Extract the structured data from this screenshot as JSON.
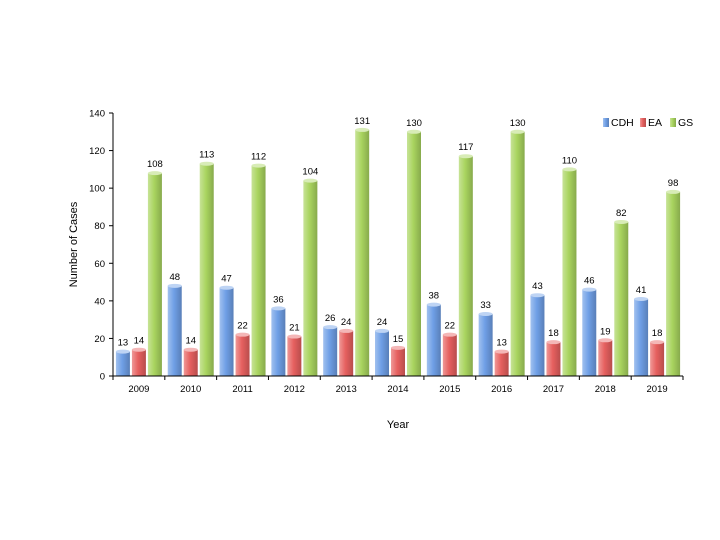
{
  "chart_data": {
    "type": "bar",
    "title": "",
    "xlabel": "Year",
    "ylabel": "Number of Cases",
    "ylim": [
      0,
      140
    ],
    "yticks": [
      0,
      20,
      40,
      60,
      80,
      100,
      120,
      140
    ],
    "grid": false,
    "legend_position": "top-right",
    "categories": [
      "2009",
      "2010",
      "2011",
      "2012",
      "2013",
      "2014",
      "2015",
      "2016",
      "2017",
      "2018",
      "2019"
    ],
    "series": [
      {
        "name": "CDH",
        "color": "#6f9fe6",
        "values": [
          13,
          48,
          47,
          36,
          26,
          24,
          38,
          33,
          43,
          46,
          41
        ]
      },
      {
        "name": "EA",
        "color": "#e6605f",
        "values": [
          14,
          14,
          22,
          21,
          24,
          15,
          22,
          13,
          18,
          19,
          18
        ]
      },
      {
        "name": "GS",
        "color": "#a9d45f",
        "values": [
          108,
          113,
          112,
          104,
          131,
          130,
          117,
          130,
          110,
          82,
          98
        ]
      }
    ]
  }
}
